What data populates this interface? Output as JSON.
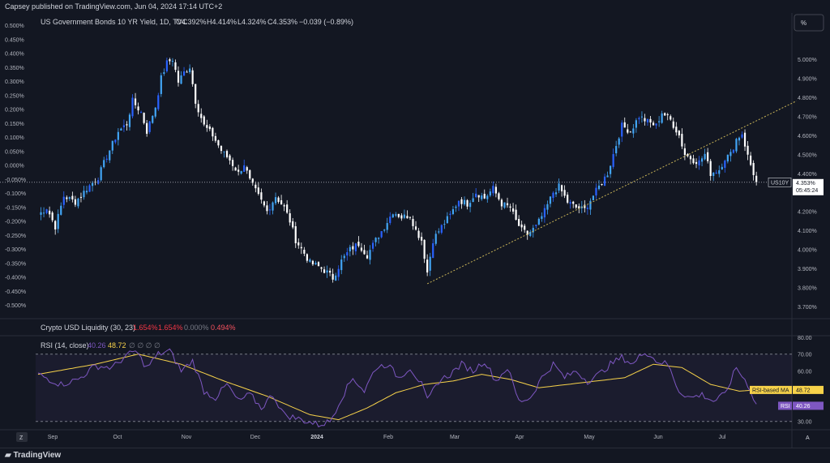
{
  "header": {
    "published": "Capsey published on TradingView.com, Jun 04, 2024 17:14 UTC+2",
    "percent_button": "%"
  },
  "legend": {
    "symbol": "US Government Bonds 10 YR Yield, 1D, TVC",
    "open": "O4.392%",
    "high": "H4.414%",
    "low": "L4.324%",
    "close": "C4.353%",
    "change": "−0.039 (−0.89%)"
  },
  "price_tag": {
    "symbol": "US10Y",
    "value": "4.353%",
    "countdown": "05:45:24"
  },
  "indicators": {
    "liquidity": {
      "name": "Crypto USD Liquidity (30, 23)",
      "v1": "1.654%",
      "v2": "1.654%",
      "v3": "0.000%",
      "v4": "0.494%"
    },
    "rsi": {
      "name": "RSI (14, close)",
      "rsi_value": "40.26",
      "ma_value": "48.72",
      "empties": "∅ ∅ ∅ ∅",
      "ma_tag_label": "RSI-based MA",
      "rsi_tag_label": "RSI"
    }
  },
  "bottom": {
    "brand": "TradingView",
    "z_button": "Z",
    "a_button": "A"
  },
  "colors": {
    "up": "#2962ff",
    "up2": "#42a5f5",
    "down": "#ffffff",
    "background": "#131722",
    "grid": "#2a2e39",
    "rsi_line": "#7e57c2",
    "rsi_ma": "#f7d24a",
    "trendline": "#c9b458"
  },
  "chart_data": {
    "type": "candlestick",
    "main_axis": {
      "right_ticks": [
        "5.000%",
        "4.900%",
        "4.800%",
        "4.700%",
        "4.600%",
        "4.500%",
        "4.400%",
        "4.300%",
        "4.200%",
        "4.100%",
        "4.000%",
        "3.900%",
        "3.800%",
        "3.700%"
      ],
      "right_range": [
        3.675,
        5.14
      ],
      "left_ticks": [
        "0.500%",
        "0.450%",
        "0.400%",
        "0.350%",
        "0.300%",
        "0.250%",
        "0.200%",
        "0.150%",
        "0.100%",
        "0.050%",
        "0.000%",
        "-0.050%",
        "-0.100%",
        "-0.150%",
        "-0.200%",
        "-0.250%",
        "-0.300%",
        "-0.350%",
        "-0.400%",
        "-0.450%",
        "-0.500%"
      ]
    },
    "x_labels": [
      "Sep",
      "Oct",
      "Nov",
      "Dec",
      "2024",
      "Feb",
      "Mar",
      "Apr",
      "May",
      "Jun",
      "Jul"
    ],
    "anchors": [
      [
        0,
        4.18
      ],
      [
        3,
        4.22
      ],
      [
        6,
        4.12
      ],
      [
        9,
        4.28
      ],
      [
        13,
        4.25
      ],
      [
        17,
        4.32
      ],
      [
        21,
        4.38
      ],
      [
        24,
        4.49
      ],
      [
        28,
        4.62
      ],
      [
        31,
        4.66
      ],
      [
        33,
        4.78
      ],
      [
        36,
        4.72
      ],
      [
        38,
        4.62
      ],
      [
        41,
        4.75
      ],
      [
        43,
        4.9
      ],
      [
        45,
        4.98
      ],
      [
        47,
        5.0
      ],
      [
        49,
        4.88
      ],
      [
        51,
        4.93
      ],
      [
        53,
        4.96
      ],
      [
        55,
        4.78
      ],
      [
        58,
        4.65
      ],
      [
        61,
        4.6
      ],
      [
        64,
        4.52
      ],
      [
        67,
        4.47
      ],
      [
        70,
        4.4
      ],
      [
        72,
        4.45
      ],
      [
        74,
        4.36
      ],
      [
        77,
        4.28
      ],
      [
        80,
        4.2
      ],
      [
        83,
        4.28
      ],
      [
        86,
        4.22
      ],
      [
        88,
        4.15
      ],
      [
        90,
        4.05
      ],
      [
        93,
        3.98
      ],
      [
        95,
        3.93
      ],
      [
        98,
        3.91
      ],
      [
        101,
        3.88
      ],
      [
        103,
        3.85
      ],
      [
        106,
        3.94
      ],
      [
        109,
        4.0
      ],
      [
        112,
        4.03
      ],
      [
        115,
        3.97
      ],
      [
        118,
        4.05
      ],
      [
        121,
        4.12
      ],
      [
        124,
        4.2
      ],
      [
        127,
        4.17
      ],
      [
        130,
        4.18
      ],
      [
        132,
        4.1
      ],
      [
        134,
        4.05
      ],
      [
        136,
        3.88
      ],
      [
        138,
        4.05
      ],
      [
        141,
        4.12
      ],
      [
        144,
        4.18
      ],
      [
        147,
        4.26
      ],
      [
        150,
        4.24
      ],
      [
        153,
        4.3
      ],
      [
        156,
        4.27
      ],
      [
        159,
        4.32
      ],
      [
        162,
        4.24
      ],
      [
        165,
        4.22
      ],
      [
        167,
        4.15
      ],
      [
        169,
        4.1
      ],
      [
        171,
        4.08
      ],
      [
        174,
        4.12
      ],
      [
        177,
        4.2
      ],
      [
        180,
        4.3
      ],
      [
        182,
        4.33
      ],
      [
        185,
        4.25
      ],
      [
        188,
        4.22
      ],
      [
        191,
        4.21
      ],
      [
        193,
        4.26
      ],
      [
        196,
        4.33
      ],
      [
        199,
        4.4
      ],
      [
        202,
        4.55
      ],
      [
        204,
        4.65
      ],
      [
        207,
        4.62
      ],
      [
        210,
        4.7
      ],
      [
        213,
        4.67
      ],
      [
        216,
        4.65
      ],
      [
        218,
        4.72
      ],
      [
        221,
        4.68
      ],
      [
        224,
        4.6
      ],
      [
        226,
        4.5
      ],
      [
        229,
        4.47
      ],
      [
        231,
        4.46
      ],
      [
        233,
        4.5
      ],
      [
        235,
        4.4
      ],
      [
        238,
        4.42
      ],
      [
        240,
        4.48
      ],
      [
        242,
        4.5
      ],
      [
        244,
        4.58
      ],
      [
        246,
        4.61
      ],
      [
        248,
        4.49
      ],
      [
        250,
        4.4
      ],
      [
        251,
        4.353
      ]
    ],
    "trendline": {
      "start": [
        136,
        3.82
      ],
      "end": [
        265,
        4.78
      ]
    },
    "current": 4.353,
    "rsi": {
      "ticks": [
        "80.00",
        "70.00",
        "60.00",
        "50.00",
        "40.00",
        "30.00"
      ],
      "range": [
        26,
        80
      ],
      "bands": [
        70,
        30
      ],
      "anchors": [
        [
          0,
          58
        ],
        [
          8,
          52
        ],
        [
          14,
          55
        ],
        [
          20,
          63
        ],
        [
          26,
          62
        ],
        [
          30,
          68
        ],
        [
          34,
          72
        ],
        [
          38,
          62
        ],
        [
          42,
          70
        ],
        [
          46,
          72
        ],
        [
          50,
          60
        ],
        [
          54,
          66
        ],
        [
          58,
          48
        ],
        [
          62,
          44
        ],
        [
          66,
          52
        ],
        [
          70,
          42
        ],
        [
          74,
          46
        ],
        [
          78,
          38
        ],
        [
          82,
          46
        ],
        [
          86,
          34
        ],
        [
          90,
          32
        ],
        [
          94,
          30
        ],
        [
          98,
          28
        ],
        [
          102,
          30
        ],
        [
          106,
          44
        ],
        [
          110,
          56
        ],
        [
          114,
          48
        ],
        [
          118,
          62
        ],
        [
          122,
          64
        ],
        [
          126,
          56
        ],
        [
          130,
          62
        ],
        [
          134,
          52
        ],
        [
          136,
          42
        ],
        [
          140,
          54
        ],
        [
          144,
          58
        ],
        [
          148,
          64
        ],
        [
          152,
          60
        ],
        [
          156,
          66
        ],
        [
          160,
          54
        ],
        [
          164,
          62
        ],
        [
          168,
          42
        ],
        [
          172,
          44
        ],
        [
          176,
          56
        ],
        [
          180,
          64
        ],
        [
          184,
          56
        ],
        [
          188,
          60
        ],
        [
          192,
          54
        ],
        [
          196,
          58
        ],
        [
          200,
          64
        ],
        [
          204,
          68
        ],
        [
          208,
          64
        ],
        [
          212,
          72
        ],
        [
          216,
          66
        ],
        [
          220,
          64
        ],
        [
          224,
          48
        ],
        [
          228,
          44
        ],
        [
          232,
          46
        ],
        [
          236,
          42
        ],
        [
          240,
          46
        ],
        [
          244,
          62
        ],
        [
          248,
          52
        ],
        [
          251,
          40.26
        ]
      ],
      "ma_anchors": [
        [
          0,
          58
        ],
        [
          20,
          64
        ],
        [
          35,
          70
        ],
        [
          50,
          64
        ],
        [
          65,
          54
        ],
        [
          80,
          45
        ],
        [
          95,
          34
        ],
        [
          105,
          31
        ],
        [
          115,
          38
        ],
        [
          125,
          47
        ],
        [
          135,
          52
        ],
        [
          145,
          54
        ],
        [
          155,
          58
        ],
        [
          165,
          55
        ],
        [
          175,
          50
        ],
        [
          185,
          52
        ],
        [
          195,
          54
        ],
        [
          205,
          56
        ],
        [
          215,
          64
        ],
        [
          225,
          62
        ],
        [
          235,
          52
        ],
        [
          245,
          48
        ],
        [
          251,
          48.72
        ]
      ]
    }
  }
}
